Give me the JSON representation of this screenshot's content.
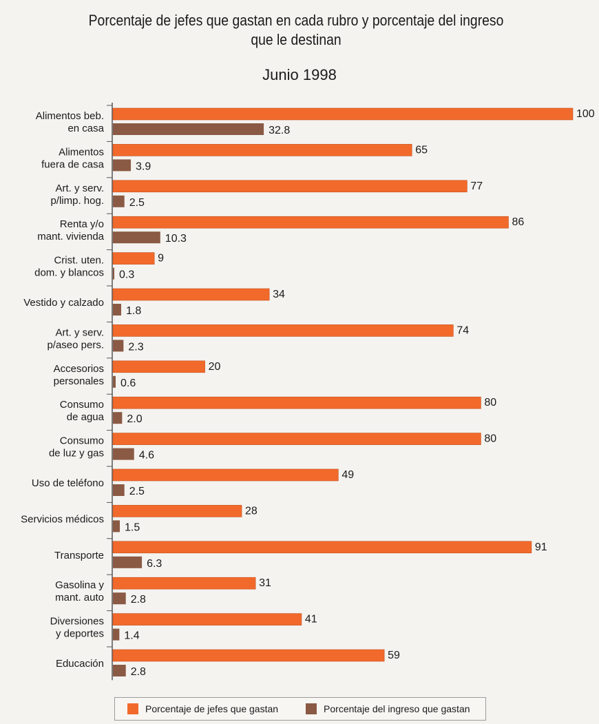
{
  "title_lines": [
    "Porcentaje de jefes que gastan en cada rubro y porcentaje del ingreso",
    "que le destinan"
  ],
  "subtitle": "Junio 1998",
  "colors": {
    "series1": "#f26a2b",
    "series2": "#8a5a44",
    "axis": "#555555"
  },
  "legend": {
    "item1": "Porcentaje de jefes que gastan",
    "item2": "Porcentaje del ingreso que gastan"
  },
  "chart_data": {
    "type": "bar",
    "orientation": "horizontal",
    "title": "Porcentaje de jefes que gastan en cada rubro y porcentaje del ingreso que le destinan",
    "subtitle": "Junio 1998",
    "categories": [
      [
        "Alimentos beb.",
        "en casa"
      ],
      [
        "Alimentos",
        "fuera de casa"
      ],
      [
        "Art. y serv.",
        "p/limp. hog."
      ],
      [
        "Renta y/o",
        "mant. vivienda"
      ],
      [
        "Crist. uten.",
        "dom. y blancos"
      ],
      [
        "Vestido y calzado"
      ],
      [
        "Art. y serv.",
        "p/aseo pers."
      ],
      [
        "Accesorios",
        "personales"
      ],
      [
        "Consumo",
        "de agua"
      ],
      [
        "Consumo",
        "de luz y gas"
      ],
      [
        "Uso de teléfono"
      ],
      [
        "Servicios médicos"
      ],
      [
        "Transporte"
      ],
      [
        "Gasolina y",
        "mant. auto"
      ],
      [
        "Diversiones",
        "y deportes"
      ],
      [
        "Educación"
      ]
    ],
    "series": [
      {
        "name": "Porcentaje de jefes que gastan",
        "values": [
          100,
          65,
          77,
          86,
          9,
          34,
          74,
          20,
          80,
          80,
          49,
          28,
          91,
          31,
          41,
          59
        ],
        "labels": [
          "100",
          "65",
          "77",
          "86",
          "9",
          "34",
          "74",
          "20",
          "80",
          "80",
          "49",
          "28",
          "91",
          "31",
          "41",
          "59"
        ]
      },
      {
        "name": "Porcentaje del ingreso que gastan",
        "values": [
          32.8,
          3.9,
          2.5,
          10.3,
          0.3,
          1.8,
          2.3,
          0.6,
          2.0,
          4.6,
          2.5,
          1.5,
          6.3,
          2.8,
          1.4,
          2.8
        ],
        "labels": [
          "32.8",
          "3.9",
          "2.5",
          "10.3",
          "0.3",
          "1.8",
          "2.3",
          "0.6",
          "2.0",
          "4.6",
          "2.5",
          "1.5",
          "6.3",
          "2.8",
          "1.4",
          "2.8"
        ]
      }
    ],
    "xlim": [
      0,
      100
    ],
    "legend_position": "bottom"
  }
}
